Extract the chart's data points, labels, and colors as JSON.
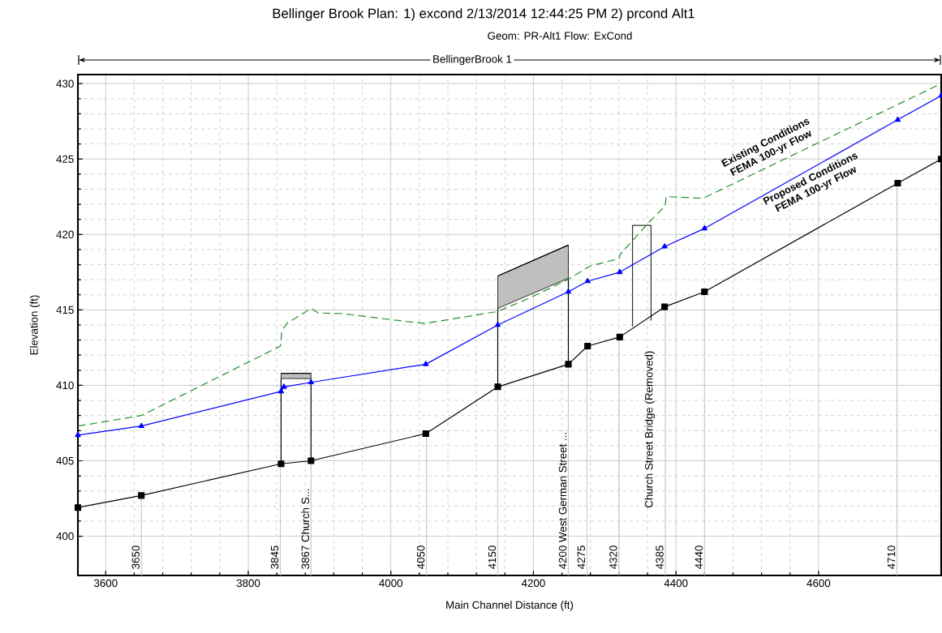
{
  "chart_data": {
    "type": "line",
    "title": "Bellinger Brook Plan: 1) excond 2/13/2014 12:44:25 PM 2) prcond Alt1",
    "subtitle": "Geom: PR-Alt1 Flow: ExCond",
    "xlabel": "Main Channel Distance (ft)",
    "ylabel": "Elevation (ft)",
    "xlim": [
      3561,
      4772
    ],
    "ylim": [
      397.4,
      430.6
    ],
    "xticks": [
      3600,
      3800,
      4000,
      4200,
      4400,
      4600
    ],
    "yticks": [
      400,
      405,
      410,
      415,
      420,
      425,
      430
    ],
    "grid": true,
    "series": [
      {
        "color": "#000000",
        "x": [
          3846,
          3888
        ],
        "values": [
          410.8,
          410.8
        ],
        "lower": [
          410.45,
          410.45
        ],
        "upper": [
          410.8,
          410.8
        ]
      },
      {
        "color": "#000000",
        "x": [
          4150,
          4249
        ],
        "values": [
          417.25,
          419.3
        ],
        "lower": [
          415.1,
          417.1
        ],
        "upper": [
          417.25,
          419.3
        ]
      },
      {
        "color": "#000000",
        "line_style": "solid",
        "x": [
          3846,
          3846
        ],
        "values": [
          404.8,
          410.45
        ]
      },
      {
        "color": "#000000",
        "line_style": "solid",
        "x": [
          3888,
          3888
        ],
        "values": [
          405.0,
          410.45
        ]
      },
      {
        "color": "#000000",
        "line_style": "solid",
        "x": [
          4150,
          4150
        ],
        "values": [
          409.9,
          415.1
        ]
      },
      {
        "color": "#000000",
        "line_style": "solid",
        "x": [
          4249,
          4249
        ],
        "values": [
          411.4,
          417.1
        ]
      },
      {
        "color": "#303030",
        "line_style": "solid",
        "x": [
          4339,
          4339,
          4365,
          4365
        ],
        "values": [
          413.9,
          420.6,
          420.6,
          414.3
        ]
      },
      {
        "color": "#000000",
        "marker": "square",
        "line_style": "solid",
        "x": [
          3561,
          3650,
          3846,
          3888,
          4049,
          4150,
          4249,
          4276,
          4321,
          4384,
          4440,
          4711,
          4772
        ],
        "values": [
          401.9,
          402.7,
          404.8,
          405.0,
          406.8,
          409.9,
          411.4,
          412.6,
          413.2,
          415.2,
          416.2,
          423.4,
          425.0
        ]
      },
      {
        "name": "Existing Conditions FEMA 100-yr Flow",
        "color": "#22902a",
        "marker": "none",
        "line_style": "dashed",
        "x": [
          3561,
          3650,
          3845,
          3847,
          3854,
          3888,
          3898,
          3933,
          3975,
          4010,
          4047,
          4112,
          4150,
          4195,
          4248,
          4279,
          4320,
          4322,
          4362,
          4385,
          4386,
          4393,
          4438,
          4772
        ],
        "values": [
          407.3,
          408.0,
          412.6,
          413.6,
          414.1,
          415.1,
          414.8,
          414.75,
          414.5,
          414.3,
          414.1,
          414.6,
          414.9,
          415.8,
          417.0,
          417.9,
          418.4,
          418.7,
          420.8,
          421.9,
          422.5,
          422.5,
          422.4,
          430.0
        ]
      },
      {
        "name": "Proposed Conditions FEMA 100-yr Flow",
        "color": "#0000ff",
        "marker": "triangle",
        "line_style": "solid",
        "x": [
          3561,
          3650,
          3846,
          3850,
          3888,
          4049,
          4150,
          4249,
          4276,
          4321,
          4384,
          4440,
          4711,
          4772
        ],
        "values": [
          406.7,
          407.3,
          409.6,
          409.9,
          410.2,
          411.4,
          414.0,
          416.2,
          416.9,
          417.5,
          419.2,
          420.4,
          427.6,
          429.2
        ]
      }
    ],
    "ref_lines": [
      {
        "axis": "x",
        "value": 3650,
        "label": "3650",
        "color": "#c8c8c8"
      },
      {
        "axis": "x",
        "value": 3845,
        "label": "3845",
        "color": "#c8c8c8"
      },
      {
        "axis": "x",
        "value": 3888,
        "label": "3867 Church S...",
        "color": "#c8c8c8"
      },
      {
        "axis": "x",
        "value": 4050,
        "label": "4050",
        "color": "#c8c8c8"
      },
      {
        "axis": "x",
        "value": 4150,
        "label": "4150",
        "color": "#c8c8c8"
      },
      {
        "axis": "x",
        "value": 4249,
        "label": "4200 West German Street ...",
        "color": "#c8c8c8"
      },
      {
        "axis": "x",
        "value": 4275,
        "label": "4275",
        "color": "#c8c8c8"
      },
      {
        "axis": "x",
        "value": 4320,
        "label": "4320",
        "color": "#c8c8c8"
      },
      {
        "axis": "x",
        "value": 4385,
        "label": "4385",
        "color": "#c8c8c8"
      },
      {
        "axis": "x",
        "value": 4440,
        "label": "4440",
        "color": "#c8c8c8"
      },
      {
        "axis": "x",
        "value": 4710,
        "label": "4710",
        "color": "#c8c8c8"
      }
    ],
    "annotations": [
      "BellingerBrook 1",
      "Church Street Bridge (Removed)"
    ]
  }
}
